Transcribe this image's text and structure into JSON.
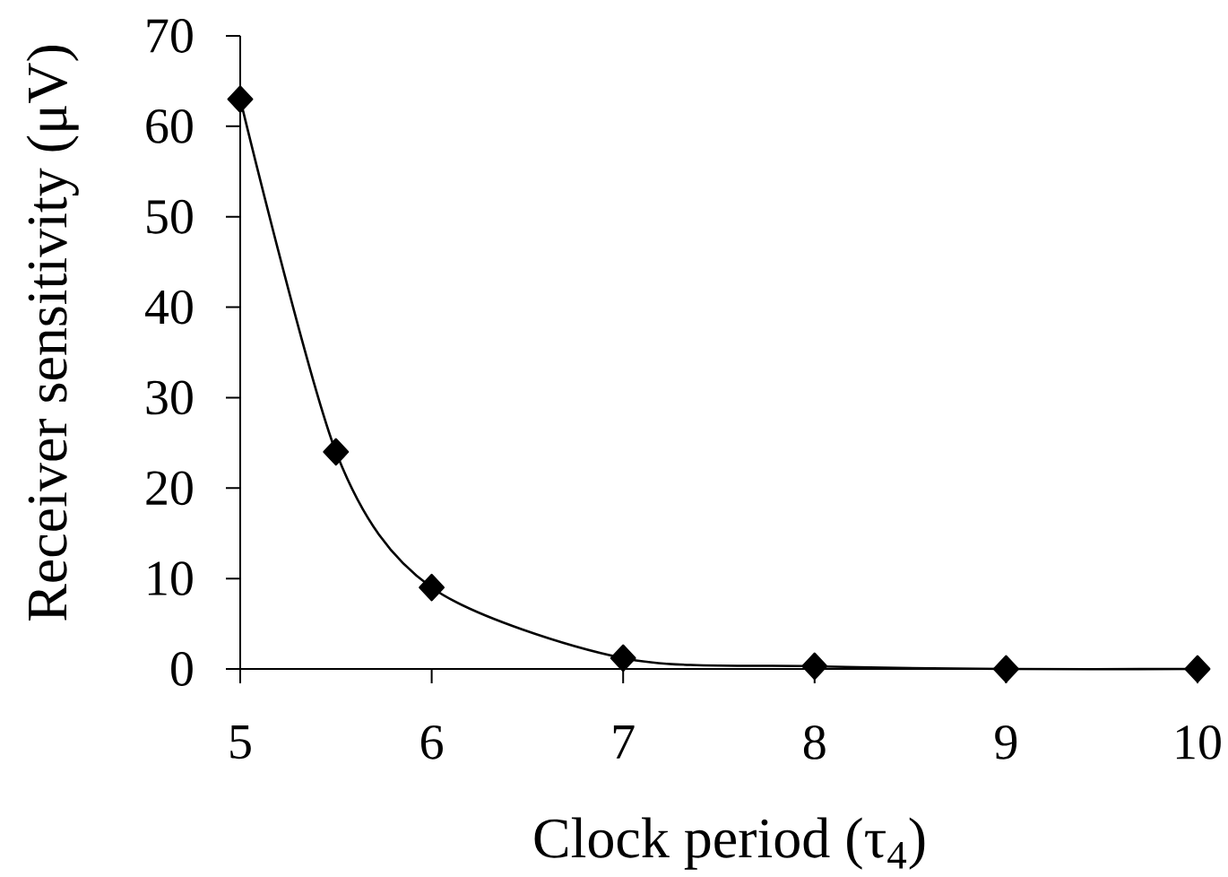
{
  "chart_data": {
    "type": "line",
    "xlabel": "Clock period (τ$_{4}$)",
    "ylabel": "Receiver sensitivity (μV)",
    "x": [
      5,
      5.5,
      6,
      7,
      8,
      9,
      10
    ],
    "series": [
      {
        "color": "#000000",
        "values": [
          63,
          24,
          9,
          1.2,
          0.3,
          0,
          0
        ]
      }
    ],
    "xlim": [
      5,
      10
    ],
    "ylim": [
      0,
      70
    ],
    "xticks": [
      5,
      6,
      7,
      8,
      9,
      10
    ],
    "yticks": [
      0,
      10,
      20,
      30,
      40,
      50,
      60,
      70
    ],
    "marker": "diamond",
    "line_style": "solid"
  }
}
